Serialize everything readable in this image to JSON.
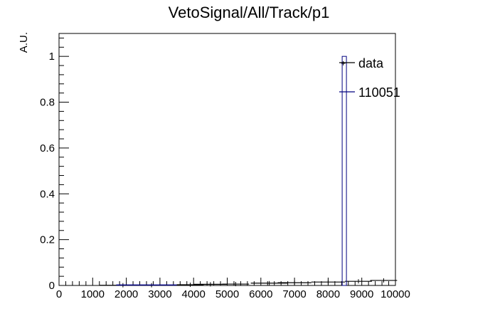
{
  "chart_data": {
    "type": "line",
    "title": "VetoSignal/All/Track/p1",
    "xlabel": "",
    "ylabel": "A.U.",
    "xlim": [
      0,
      10000
    ],
    "ylim": [
      0,
      1.1
    ],
    "x_ticks": [
      "0",
      "1000",
      "2000",
      "3000",
      "4000",
      "5000",
      "6000",
      "7000",
      "8000",
      "9000",
      "10000"
    ],
    "y_ticks": [
      "0",
      "0.2",
      "0.4",
      "0.6",
      "0.8",
      "1"
    ],
    "grid": false,
    "legend_position": "top-right",
    "series": [
      {
        "name": "data",
        "color": "#000000",
        "style": "histogram-errorbars",
        "x": [
          1900,
          2750,
          3900,
          4500,
          5250,
          6250,
          7000,
          8000,
          8450,
          8900,
          9650
        ],
        "y": [
          0.001,
          0.001,
          0.003,
          0.005,
          0.006,
          0.01,
          0.012,
          0.015,
          0.97,
          0.018,
          0.022
        ]
      },
      {
        "name": "110051",
        "color": "#000080",
        "style": "histogram",
        "x": [
          2550,
          8480
        ],
        "y": [
          0.002,
          1.0
        ]
      }
    ]
  }
}
